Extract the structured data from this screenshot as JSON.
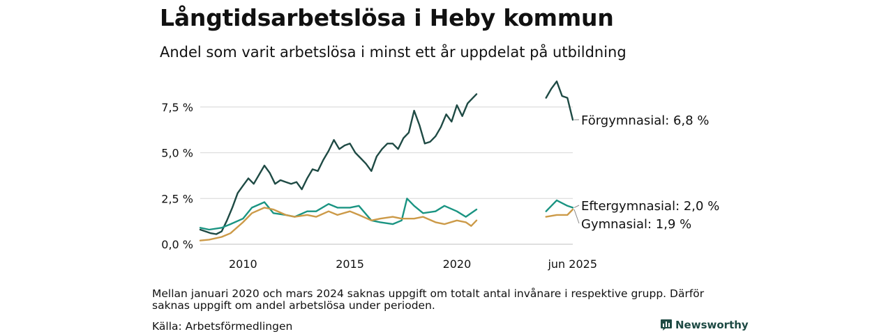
{
  "header": {
    "title": "Långtidsarbetslösa i Heby kommun",
    "subtitle": "Andel som varit arbetslösa i minst ett år uppdelat på utbildning"
  },
  "footer": {
    "note": "Mellan januari 2020 och mars 2024 saknas uppgift om totalt antal invånare i respektive grupp. Därför saknas uppgift om andel arbetslösa under perioden.",
    "source": "Källa: Arbetsförmedlingen",
    "brand": "Newsworthy",
    "brand_icon": "bar-chart-logo-icon"
  },
  "colors": {
    "forgymnasial": "#1e4a44",
    "eftergymnasial": "#1a9482",
    "gymnasial": "#cc9a48",
    "grid": "#dddddd",
    "brand": "#1e4a44"
  },
  "chart_data": {
    "type": "line",
    "x_axis": {
      "ticks": [
        {
          "date": "2010-01",
          "label": "2010"
        },
        {
          "date": "2015-01",
          "label": "2015"
        },
        {
          "date": "2020-01",
          "label": "2020"
        },
        {
          "date": "2025-06",
          "label": "jun 2025"
        }
      ],
      "range": [
        "2008-01",
        "2025-06"
      ]
    },
    "y_axis": {
      "ticks": [
        {
          "value": 0,
          "label": "0,0 %"
        },
        {
          "value": 2.5,
          "label": "2,5 %"
        },
        {
          "value": 5.0,
          "label": "5,0 %"
        },
        {
          "value": 7.5,
          "label": "7,5 %"
        }
      ],
      "range": [
        0,
        9.0
      ]
    },
    "grid": "horizontal",
    "gap": [
      "2020-12",
      "2024-03"
    ],
    "series": [
      {
        "name": "Förgymnasial",
        "color": "#1e4a44",
        "end_label": "Förgymnasial: 6,8 %",
        "points": [
          [
            "2008-01",
            0.8
          ],
          [
            "2008-04",
            0.7
          ],
          [
            "2008-07",
            0.6
          ],
          [
            "2008-10",
            0.55
          ],
          [
            "2009-01",
            0.7
          ],
          [
            "2009-04",
            1.3
          ],
          [
            "2009-07",
            2.0
          ],
          [
            "2009-10",
            2.8
          ],
          [
            "2010-01",
            3.2
          ],
          [
            "2010-04",
            3.6
          ],
          [
            "2010-07",
            3.3
          ],
          [
            "2010-10",
            3.8
          ],
          [
            "2011-01",
            4.3
          ],
          [
            "2011-04",
            3.9
          ],
          [
            "2011-07",
            3.3
          ],
          [
            "2011-10",
            3.5
          ],
          [
            "2012-01",
            3.4
          ],
          [
            "2012-04",
            3.3
          ],
          [
            "2012-07",
            3.4
          ],
          [
            "2012-10",
            3.0
          ],
          [
            "2013-01",
            3.6
          ],
          [
            "2013-04",
            4.1
          ],
          [
            "2013-07",
            4.0
          ],
          [
            "2013-10",
            4.6
          ],
          [
            "2014-01",
            5.1
          ],
          [
            "2014-04",
            5.7
          ],
          [
            "2014-07",
            5.2
          ],
          [
            "2014-10",
            5.4
          ],
          [
            "2015-01",
            5.5
          ],
          [
            "2015-04",
            5.0
          ],
          [
            "2015-07",
            4.7
          ],
          [
            "2015-10",
            4.4
          ],
          [
            "2016-01",
            4.0
          ],
          [
            "2016-04",
            4.8
          ],
          [
            "2016-07",
            5.2
          ],
          [
            "2016-10",
            5.5
          ],
          [
            "2017-01",
            5.5
          ],
          [
            "2017-04",
            5.2
          ],
          [
            "2017-07",
            5.8
          ],
          [
            "2017-10",
            6.1
          ],
          [
            "2018-01",
            7.3
          ],
          [
            "2018-04",
            6.5
          ],
          [
            "2018-07",
            5.5
          ],
          [
            "2018-10",
            5.6
          ],
          [
            "2019-01",
            5.9
          ],
          [
            "2019-04",
            6.4
          ],
          [
            "2019-07",
            7.1
          ],
          [
            "2019-10",
            6.7
          ],
          [
            "2020-01",
            7.6
          ],
          [
            "2020-04",
            7.0
          ],
          [
            "2020-07",
            7.7
          ],
          [
            "2020-10",
            8.0
          ],
          [
            "2020-12",
            8.2
          ]
        ],
        "points_after_gap": [
          [
            "2024-03",
            8.0
          ],
          [
            "2024-06",
            8.5
          ],
          [
            "2024-09",
            8.9
          ],
          [
            "2024-12",
            8.1
          ],
          [
            "2025-03",
            8.0
          ],
          [
            "2025-06",
            6.8
          ]
        ]
      },
      {
        "name": "Eftergymnasial",
        "color": "#1a9482",
        "end_label": "Eftergymnasial: 2,0 %",
        "points": [
          [
            "2008-01",
            0.9
          ],
          [
            "2008-06",
            0.8
          ],
          [
            "2009-01",
            0.9
          ],
          [
            "2009-06",
            1.1
          ],
          [
            "2010-01",
            1.4
          ],
          [
            "2010-06",
            2.0
          ],
          [
            "2011-01",
            2.3
          ],
          [
            "2011-06",
            1.7
          ],
          [
            "2012-01",
            1.6
          ],
          [
            "2012-06",
            1.5
          ],
          [
            "2013-01",
            1.8
          ],
          [
            "2013-06",
            1.8
          ],
          [
            "2014-01",
            2.2
          ],
          [
            "2014-06",
            2.0
          ],
          [
            "2015-01",
            2.0
          ],
          [
            "2015-06",
            2.1
          ],
          [
            "2016-01",
            1.3
          ],
          [
            "2016-06",
            1.2
          ],
          [
            "2017-01",
            1.1
          ],
          [
            "2017-06",
            1.3
          ],
          [
            "2017-09",
            2.5
          ],
          [
            "2018-01",
            2.1
          ],
          [
            "2018-06",
            1.7
          ],
          [
            "2019-01",
            1.8
          ],
          [
            "2019-06",
            2.1
          ],
          [
            "2020-01",
            1.8
          ],
          [
            "2020-06",
            1.5
          ],
          [
            "2020-12",
            1.9
          ]
        ],
        "points_after_gap": [
          [
            "2024-03",
            1.8
          ],
          [
            "2024-09",
            2.4
          ],
          [
            "2025-03",
            2.1
          ],
          [
            "2025-06",
            2.0
          ]
        ]
      },
      {
        "name": "Gymnasial",
        "color": "#cc9a48",
        "end_label": "Gymnasial: 1,9 %",
        "points": [
          [
            "2008-01",
            0.2
          ],
          [
            "2008-06",
            0.25
          ],
          [
            "2009-01",
            0.4
          ],
          [
            "2009-06",
            0.6
          ],
          [
            "2010-01",
            1.2
          ],
          [
            "2010-06",
            1.7
          ],
          [
            "2011-01",
            2.0
          ],
          [
            "2011-06",
            1.9
          ],
          [
            "2012-01",
            1.6
          ],
          [
            "2012-06",
            1.5
          ],
          [
            "2013-01",
            1.6
          ],
          [
            "2013-06",
            1.5
          ],
          [
            "2014-01",
            1.8
          ],
          [
            "2014-06",
            1.6
          ],
          [
            "2015-01",
            1.8
          ],
          [
            "2015-06",
            1.6
          ],
          [
            "2016-01",
            1.3
          ],
          [
            "2016-06",
            1.4
          ],
          [
            "2017-01",
            1.5
          ],
          [
            "2017-06",
            1.4
          ],
          [
            "2018-01",
            1.4
          ],
          [
            "2018-06",
            1.5
          ],
          [
            "2019-01",
            1.2
          ],
          [
            "2019-06",
            1.1
          ],
          [
            "2020-01",
            1.3
          ],
          [
            "2020-06",
            1.2
          ],
          [
            "2020-09",
            1.0
          ],
          [
            "2020-12",
            1.3
          ]
        ],
        "points_after_gap": [
          [
            "2024-03",
            1.5
          ],
          [
            "2024-09",
            1.6
          ],
          [
            "2025-03",
            1.6
          ],
          [
            "2025-06",
            1.9
          ]
        ]
      }
    ]
  }
}
